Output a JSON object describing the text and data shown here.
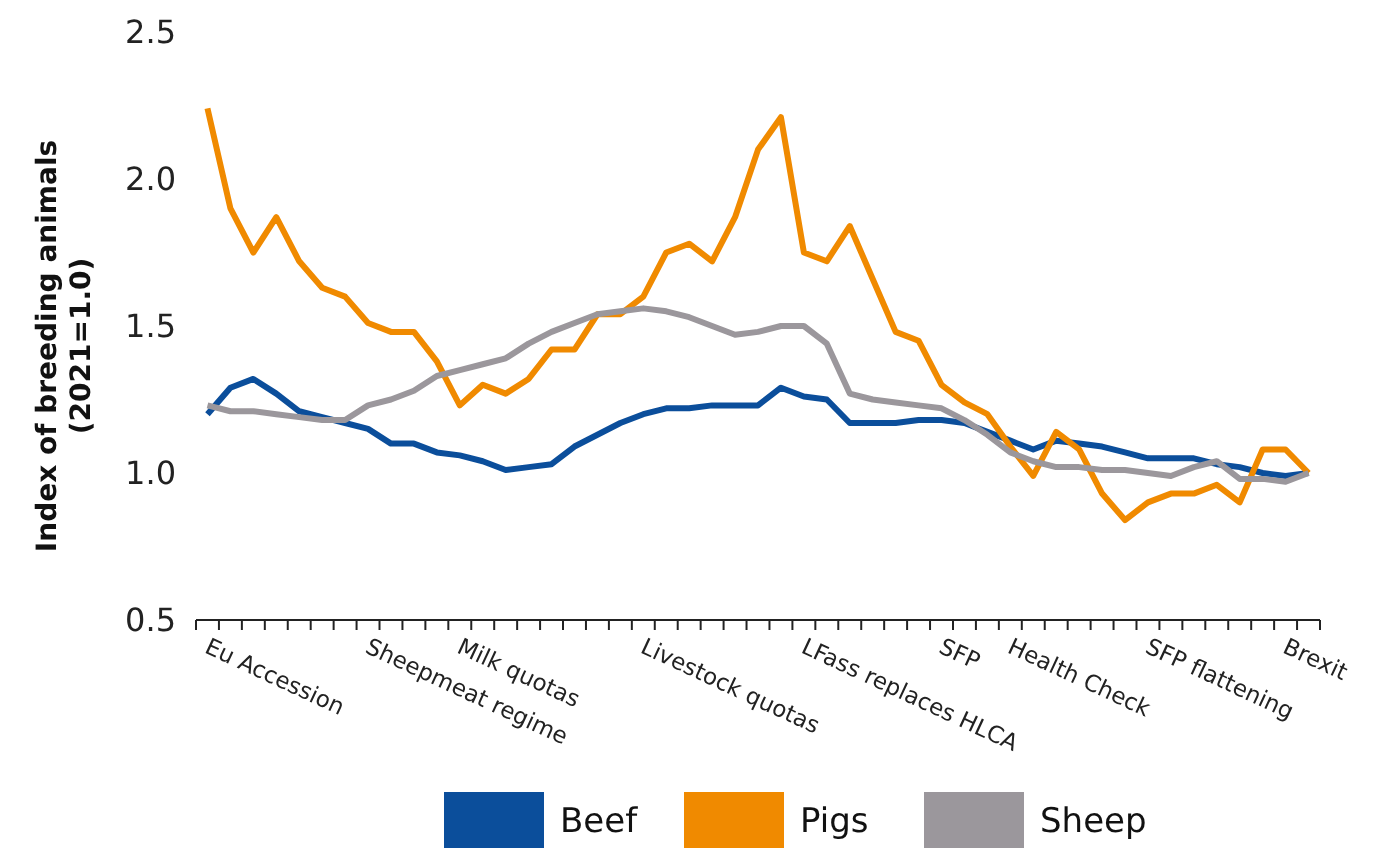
{
  "chart_data": {
    "type": "line",
    "ylabel": "Index of breeding animals\n(2021=1.0)",
    "categories": [
      "Eu Accession",
      null,
      null,
      null,
      null,
      null,
      null,
      "Sheepmeat regime",
      null,
      null,
      null,
      "Milk quotas",
      null,
      null,
      null,
      null,
      null,
      null,
      null,
      "Livestock quotas",
      null,
      null,
      null,
      null,
      null,
      null,
      "LFass replaces HLCA",
      null,
      null,
      null,
      null,
      null,
      "SFP",
      null,
      null,
      "Health Check",
      null,
      null,
      null,
      null,
      null,
      "SFP flattening",
      null,
      null,
      null,
      null,
      null,
      "Brexit",
      null
    ],
    "ylim": [
      0.5,
      2.5
    ],
    "yticks": [
      {
        "value": 0.5,
        "label": "0.5"
      },
      {
        "value": 1,
        "label": "1.0"
      },
      {
        "value": 1.5,
        "label": "1.5"
      },
      {
        "value": 2,
        "label": "2.0"
      },
      {
        "value": 2.5,
        "label": "2.5"
      }
    ],
    "grid": false,
    "legend": "bottom",
    "line_style": "solid",
    "marker": "none",
    "series": [
      {
        "name": "Beef",
        "color": "#0b4e9b",
        "values": [
          1.2,
          1.29,
          1.32,
          1.27,
          1.21,
          1.19,
          1.17,
          1.15,
          1.1,
          1.1,
          1.07,
          1.06,
          1.04,
          1.01,
          1.02,
          1.03,
          1.09,
          1.13,
          1.17,
          1.2,
          1.22,
          1.22,
          1.23,
          1.23,
          1.23,
          1.29,
          1.26,
          1.25,
          1.17,
          1.17,
          1.17,
          1.18,
          1.18,
          1.17,
          1.14,
          1.11,
          1.08,
          1.11,
          1.1,
          1.09,
          1.07,
          1.05,
          1.05,
          1.05,
          1.03,
          1.02,
          1.0,
          0.99,
          1.0
        ]
      },
      {
        "name": "Pigs",
        "color": "#f08a00",
        "values": [
          2.24,
          1.9,
          1.75,
          1.87,
          1.72,
          1.63,
          1.6,
          1.51,
          1.48,
          1.48,
          1.38,
          1.23,
          1.3,
          1.27,
          1.32,
          1.42,
          1.42,
          1.54,
          1.54,
          1.6,
          1.75,
          1.78,
          1.72,
          1.87,
          2.1,
          2.21,
          1.75,
          1.72,
          1.84,
          1.66,
          1.48,
          1.45,
          1.3,
          1.24,
          1.2,
          1.09,
          0.99,
          1.14,
          1.08,
          0.93,
          0.84,
          0.9,
          0.93,
          0.93,
          0.96,
          0.9,
          1.08,
          1.08,
          1.0
        ]
      },
      {
        "name": "Sheep",
        "color": "#9b979c",
        "values": [
          1.23,
          1.21,
          1.21,
          1.2,
          1.19,
          1.18,
          1.18,
          1.23,
          1.25,
          1.28,
          1.33,
          1.35,
          1.37,
          1.39,
          1.44,
          1.48,
          1.51,
          1.54,
          1.55,
          1.56,
          1.55,
          1.53,
          1.5,
          1.47,
          1.48,
          1.5,
          1.5,
          1.44,
          1.27,
          1.25,
          1.24,
          1.23,
          1.22,
          1.18,
          1.13,
          1.07,
          1.04,
          1.02,
          1.02,
          1.01,
          1.01,
          1.0,
          0.99,
          1.02,
          1.04,
          0.98,
          0.98,
          0.97,
          1.0
        ]
      }
    ]
  }
}
